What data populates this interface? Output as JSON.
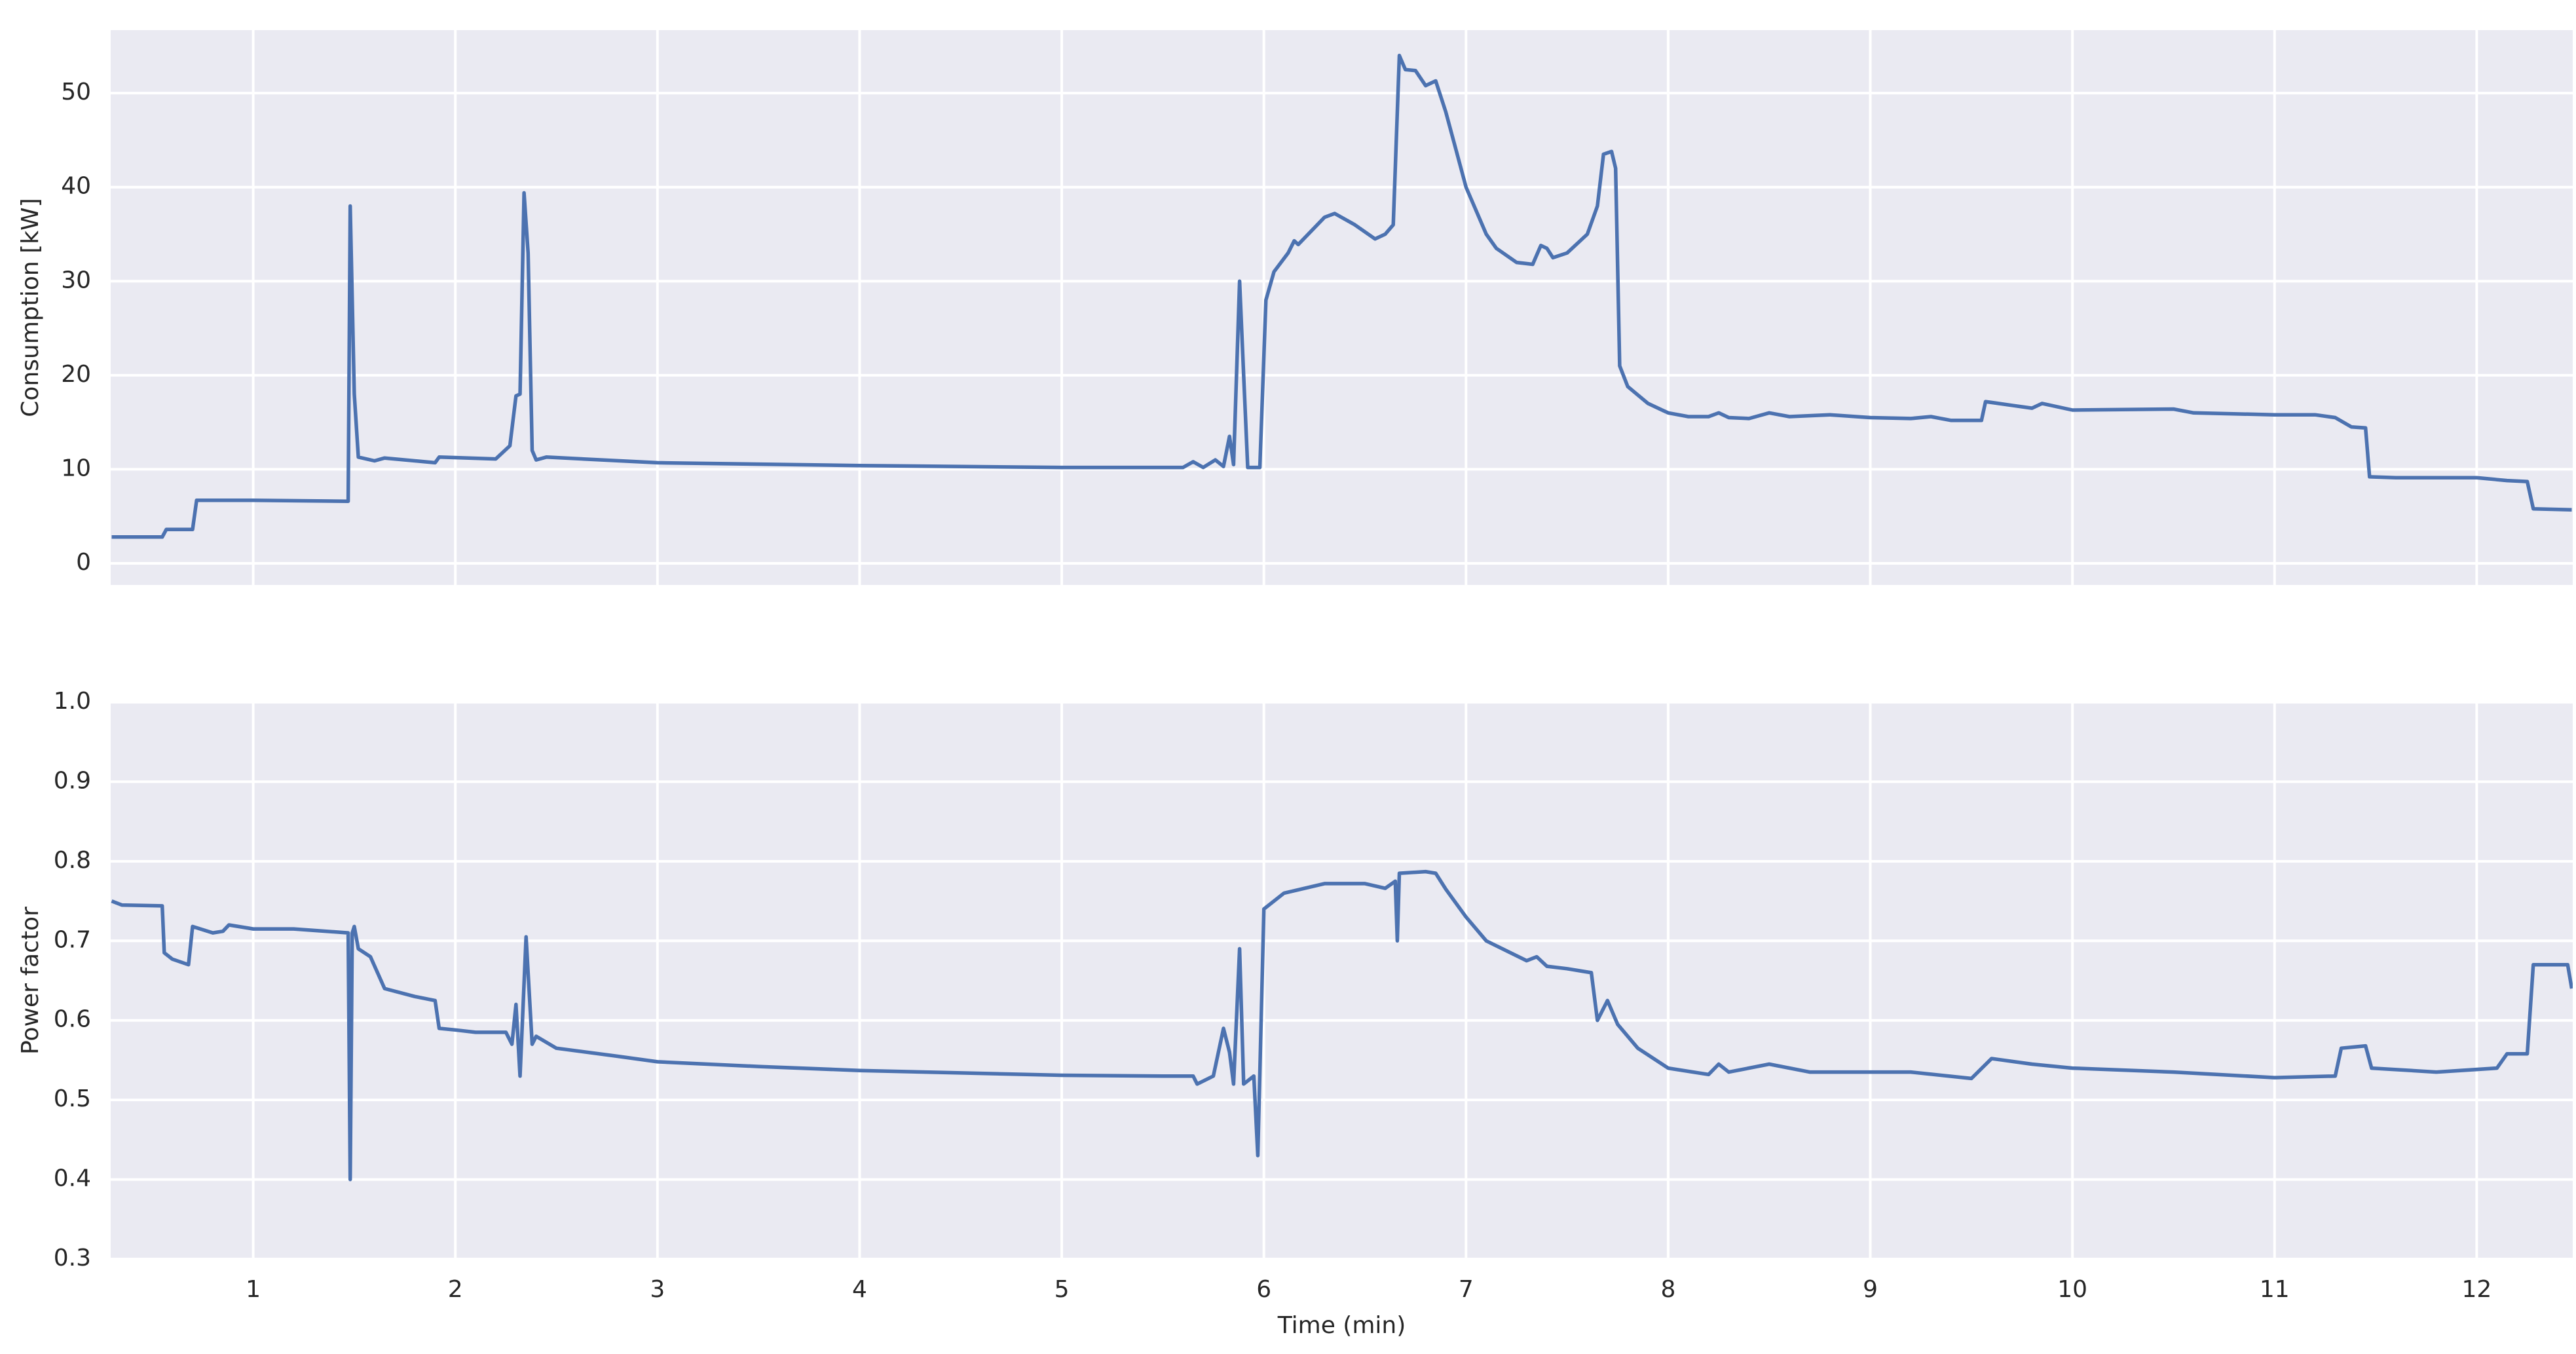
{
  "chart_data": [
    {
      "type": "line",
      "ylabel": "Consumption [kW]",
      "x": [
        0.3,
        0.55,
        0.57,
        0.7,
        0.72,
        1.0,
        1.47,
        1.48,
        1.5,
        1.52,
        1.6,
        1.65,
        1.9,
        1.92,
        2.2,
        2.27,
        2.3,
        2.32,
        2.34,
        2.36,
        2.38,
        2.4,
        2.45,
        3.0,
        4.0,
        5.0,
        5.6,
        5.65,
        5.7,
        5.76,
        5.8,
        5.83,
        5.85,
        5.88,
        5.9,
        5.92,
        5.98,
        6.01,
        6.05,
        6.12,
        6.15,
        6.17,
        6.3,
        6.35,
        6.45,
        6.55,
        6.6,
        6.64,
        6.67,
        6.7,
        6.75,
        6.8,
        6.85,
        6.9,
        6.95,
        7.0,
        7.1,
        7.15,
        7.25,
        7.33,
        7.37,
        7.4,
        7.43,
        7.5,
        7.6,
        7.65,
        7.68,
        7.72,
        7.74,
        7.76,
        7.8,
        7.9,
        8.0,
        8.1,
        8.2,
        8.25,
        8.3,
        8.4,
        8.5,
        8.6,
        8.8,
        9.0,
        9.2,
        9.3,
        9.4,
        9.55,
        9.57,
        9.7,
        9.8,
        9.85,
        10.0,
        10.5,
        10.6,
        11.0,
        11.2,
        11.3,
        11.38,
        11.45,
        11.47,
        11.6,
        12.0,
        12.15,
        12.25,
        12.28,
        12.47
      ],
      "series": [
        {
          "color": "#4c72b0",
          "values": [
            2.8,
            2.8,
            3.6,
            3.6,
            6.7,
            6.7,
            6.6,
            38,
            18,
            11.3,
            10.9,
            11.2,
            10.7,
            11.3,
            11.1,
            12.5,
            17.8,
            18,
            39.4,
            33,
            12,
            11,
            11.3,
            10.7,
            10.4,
            10.2,
            10.2,
            10.8,
            10.2,
            11,
            10.3,
            13.5,
            10.5,
            30,
            20,
            10.2,
            10.2,
            28,
            31,
            33,
            34.3,
            33.9,
            36.8,
            37.2,
            36,
            34.5,
            35,
            36,
            54,
            52.5,
            52.4,
            50.8,
            51.3,
            48,
            44,
            40,
            35,
            33.5,
            32,
            31.8,
            33.8,
            33.5,
            32.5,
            33,
            35,
            38,
            43.5,
            43.8,
            42,
            21,
            18.8,
            17,
            16,
            15.6,
            15.6,
            16,
            15.5,
            15.4,
            16,
            15.6,
            15.8,
            15.5,
            15.4,
            15.6,
            15.2,
            15.2,
            17.2,
            16.8,
            16.5,
            17,
            16.3,
            16.4,
            16,
            15.8,
            15.8,
            15.5,
            14.5,
            14.4,
            9.2,
            9.1,
            9.1,
            8.8,
            8.7,
            5.8,
            5.7
          ]
        }
      ],
      "xlim": [
        0.295,
        12.475
      ],
      "xticks": [
        1,
        2,
        3,
        4,
        5,
        6,
        7,
        8,
        9,
        10,
        11,
        12
      ],
      "ylim": [
        -2.3,
        56.7
      ],
      "yticks": [
        0,
        10,
        20,
        30,
        40,
        50
      ],
      "grid": true
    },
    {
      "type": "line",
      "xlabel": "Time (min)",
      "ylabel": "Power factor",
      "x": [
        0.3,
        0.35,
        0.55,
        0.56,
        0.6,
        0.68,
        0.7,
        0.8,
        0.85,
        0.88,
        1.0,
        1.2,
        1.47,
        1.48,
        1.49,
        1.5,
        1.52,
        1.58,
        1.65,
        1.8,
        1.9,
        1.92,
        2.0,
        2.1,
        2.25,
        2.28,
        2.3,
        2.32,
        2.35,
        2.38,
        2.4,
        2.5,
        2.8,
        3.0,
        3.5,
        4.0,
        4.5,
        5.0,
        5.5,
        5.65,
        5.67,
        5.75,
        5.8,
        5.83,
        5.85,
        5.88,
        5.9,
        5.95,
        5.97,
        6.0,
        6.1,
        6.3,
        6.5,
        6.6,
        6.65,
        6.66,
        6.67,
        6.8,
        6.85,
        6.9,
        7.0,
        7.1,
        7.3,
        7.35,
        7.4,
        7.5,
        7.62,
        7.65,
        7.7,
        7.75,
        7.85,
        8.0,
        8.2,
        8.25,
        8.3,
        8.5,
        8.7,
        9.0,
        9.2,
        9.5,
        9.6,
        9.8,
        10.0,
        10.5,
        11.0,
        11.3,
        11.33,
        11.45,
        11.48,
        11.8,
        12.1,
        12.15,
        12.25,
        12.28,
        12.45,
        12.47
      ],
      "series": [
        {
          "color": "#4c72b0",
          "values": [
            0.75,
            0.745,
            0.744,
            0.685,
            0.677,
            0.67,
            0.718,
            0.71,
            0.712,
            0.72,
            0.715,
            0.715,
            0.71,
            0.4,
            0.71,
            0.718,
            0.69,
            0.68,
            0.64,
            0.63,
            0.625,
            0.59,
            0.588,
            0.585,
            0.585,
            0.57,
            0.62,
            0.53,
            0.705,
            0.57,
            0.58,
            0.565,
            0.555,
            0.548,
            0.542,
            0.537,
            0.534,
            0.531,
            0.53,
            0.53,
            0.52,
            0.53,
            0.59,
            0.56,
            0.52,
            0.69,
            0.52,
            0.53,
            0.43,
            0.74,
            0.76,
            0.772,
            0.772,
            0.766,
            0.775,
            0.7,
            0.785,
            0.787,
            0.785,
            0.765,
            0.73,
            0.7,
            0.675,
            0.68,
            0.668,
            0.665,
            0.66,
            0.6,
            0.625,
            0.595,
            0.565,
            0.54,
            0.532,
            0.545,
            0.535,
            0.545,
            0.535,
            0.535,
            0.535,
            0.527,
            0.552,
            0.545,
            0.54,
            0.535,
            0.528,
            0.53,
            0.565,
            0.568,
            0.54,
            0.535,
            0.54,
            0.558,
            0.558,
            0.67,
            0.67,
            0.64
          ]
        }
      ],
      "xlim": [
        0.295,
        12.475
      ],
      "xticks": [
        1,
        2,
        3,
        4,
        5,
        6,
        7,
        8,
        9,
        10,
        11,
        12
      ],
      "ylim": [
        0.3,
        1.0
      ],
      "yticks": [
        0.3,
        0.4,
        0.5,
        0.6,
        0.7,
        0.8,
        0.9,
        {
          "value": 1.0,
          "label": "1.0"
        }
      ],
      "grid": true
    }
  ]
}
